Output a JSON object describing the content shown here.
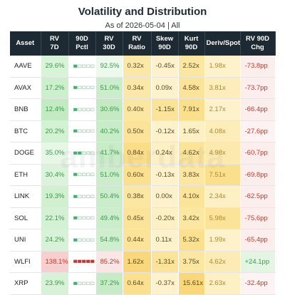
{
  "header": {
    "title": "Volatility and Distribution",
    "subtitle": "As of 2026-05-04 | All"
  },
  "watermark": "amberdata",
  "table": {
    "columns": [
      "Asset",
      "RV\n7D",
      "90D\nPctl",
      "RV\n30D",
      "RV\nRatio",
      "Skew\n90D",
      "Kurt\n90D",
      "Deriv/Spot",
      "RV 90D\nChg"
    ],
    "rows": [
      {
        "cells": [
          "AAVE",
          "29.6%",
          1,
          "92.5%",
          "0.32x",
          "-0.45x",
          "2.52x",
          "1.98x",
          "-73.8pp"
        ],
        "pctl_color": "#3cb371",
        "bg": [
          null,
          "#d9f3d9",
          null,
          "#eef9ee",
          "#fbe8a8",
          "#fdf2cc",
          "#fbe7a2",
          "#fdf2cc",
          "#fdeeee"
        ]
      },
      {
        "cells": [
          "AVAX",
          "17.2%",
          1,
          "51.0%",
          "0.34x",
          "0.09x",
          "4.58x",
          "3.81x",
          "-73.7pp"
        ],
        "pctl_color": "#3cb371",
        "bg": [
          null,
          "#cdefcd",
          null,
          "#cbedcb",
          "#fbe8a8",
          "#fdf2cc",
          "#fbe39a",
          "#fcedbb",
          "#fdeeee"
        ]
      },
      {
        "cells": [
          "BNB",
          "12.4%",
          1,
          "30.6%",
          "0.40x",
          "-1.15x",
          "7.91x",
          "2.17x",
          "-66.4pp"
        ],
        "pctl_color": "#3cb371",
        "bg": [
          null,
          "#c3ebc3",
          null,
          "#c4eac4",
          "#fbe6a2",
          "#fbe39a",
          "#fadf8c",
          "#fdf2cc",
          "#fdeeee"
        ]
      },
      {
        "cells": [
          "BTC",
          "20.2%",
          1,
          "40.2%",
          "0.50x",
          "-0.12x",
          "1.65x",
          "4.08x",
          "-27.6pp"
        ],
        "pctl_color": "#3cb371",
        "bg": [
          null,
          "#d3f1d3",
          null,
          "#c8ecc8",
          "#fbe39a",
          "#fdf2cc",
          "#fdf0c4",
          "#fcedbb",
          "#fdf3f3"
        ]
      },
      {
        "cells": [
          "DOGE",
          "35.0%",
          2,
          "41.7%",
          "0.84x",
          "0.24x",
          "4.62x",
          "4.98x",
          "-60.7pp"
        ],
        "pctl_color": "#3cb371",
        "bg": [
          null,
          "#e6f7e6",
          null,
          "#c8ecc8",
          "#fadd86",
          "#fdf0c4",
          "#fbe39a",
          "#fce9ae",
          "#fdeeee"
        ]
      },
      {
        "cells": [
          "ETH",
          "30.4%",
          1,
          "51.0%",
          "0.60x",
          "-0.13x",
          "3.83x",
          "7.51x",
          "-69.8pp"
        ],
        "pctl_color": "#3cb371",
        "bg": [
          null,
          "#dbf3db",
          null,
          "#cbedcb",
          "#fbe18f",
          "#fdf2cc",
          "#fbe6a2",
          "#fadf8c",
          "#fdeeee"
        ]
      },
      {
        "cells": [
          "LINK",
          "19.3%",
          1,
          "50.4%",
          "0.38x",
          "0.00x",
          "4.10x",
          "2.34x",
          "-62.5pp"
        ],
        "pctl_color": "#3cb371",
        "bg": [
          null,
          "#d0f0d0",
          null,
          "#cbedcb",
          "#fbe6a2",
          "#fdf2cc",
          "#fbe39a",
          "#fdf0c4",
          "#fdeeee"
        ]
      },
      {
        "cells": [
          "SOL",
          "22.1%",
          1,
          "49.4%",
          "0.45x",
          "-0.20x",
          "3.42x",
          "5.98x",
          "-75.6pp"
        ],
        "pctl_color": "#3cb371",
        "bg": [
          null,
          "#d5f1d5",
          null,
          "#cbedcb",
          "#fbe39a",
          "#fdf0c4",
          "#fbe6a2",
          "#fbe39a",
          "#fdeeee"
        ]
      },
      {
        "cells": [
          "UNI",
          "24.2%",
          1,
          "54.8%",
          "0.44x",
          "0.11x",
          "5.32x",
          "1.99x",
          "-65.4pp"
        ],
        "pctl_color": "#3cb371",
        "bg": [
          null,
          "#d8f2d8",
          null,
          "#ceeece",
          "#fbe39a",
          "#fdf2cc",
          "#fbe18f",
          "#fdf2cc",
          "#fdeeee"
        ]
      },
      {
        "cells": [
          "WLFI",
          "138.1%",
          5,
          "85.2%",
          "1.62x",
          "-1.31x",
          "3.75x",
          "4.62x",
          "+24.1pp"
        ],
        "pctl_color": "#d03030",
        "bg": [
          null,
          "#f8cfcf",
          null,
          "#fbe6e6",
          "#f9d77a",
          "#fbe39a",
          "#fbe6a2",
          "#fcebb4",
          "#e4f5e4"
        ]
      },
      {
        "cells": [
          "XRP",
          "23.9%",
          1,
          "37.2%",
          "0.64x",
          "-0.37x",
          "15.61x",
          "2.63x",
          "-32.4pp"
        ],
        "pctl_color": "#3cb371",
        "bg": [
          null,
          "#d8f2d8",
          null,
          "#c6ebc6",
          "#fbe18f",
          "#fdf2cc",
          "#f9d77a",
          "#fdf0c4",
          "#fdf3f3"
        ]
      }
    ]
  }
}
